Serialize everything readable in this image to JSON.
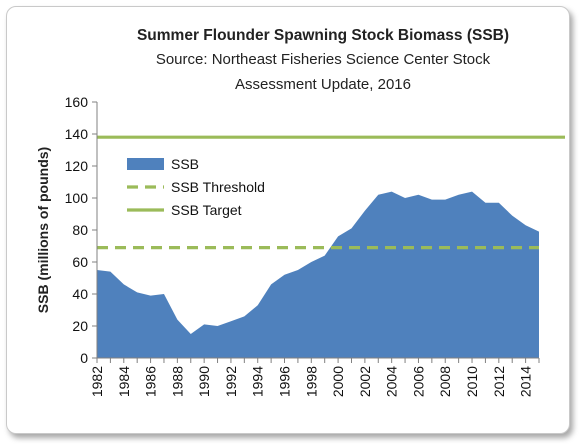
{
  "chart_data": {
    "type": "area",
    "title": "Summer Flounder Spawning Stock Biomass (SSB)",
    "subtitle_line1": "Source: Northeast Fisheries Science Center Stock",
    "subtitle_line2": "Assessment Update, 2016",
    "ylabel": "SSB (millions of pounds)",
    "xlabel": "",
    "ylim": [
      0,
      160
    ],
    "yticks": [
      0,
      20,
      40,
      60,
      80,
      100,
      120,
      140,
      160
    ],
    "xticks": [
      "1982",
      "1984",
      "1986",
      "1988",
      "1990",
      "1992",
      "1994",
      "1996",
      "1998",
      "2000",
      "2002",
      "2004",
      "2006",
      "2008",
      "2010",
      "2012",
      "2014"
    ],
    "grid": false,
    "legend_position": "upper-left",
    "x": [
      1982,
      1983,
      1984,
      1985,
      1986,
      1987,
      1988,
      1989,
      1990,
      1991,
      1992,
      1993,
      1994,
      1995,
      1996,
      1997,
      1998,
      1999,
      2000,
      2001,
      2002,
      2003,
      2004,
      2005,
      2006,
      2007,
      2008,
      2009,
      2010,
      2011,
      2012,
      2013,
      2014,
      2015
    ],
    "series": [
      {
        "name": "SSB",
        "kind": "area",
        "color": "#4f81bd",
        "values": [
          55,
          54,
          46,
          41,
          39,
          40,
          24,
          15,
          21,
          20,
          23,
          26,
          33,
          46,
          52,
          55,
          60,
          64,
          76,
          81,
          92,
          102,
          104,
          100,
          102,
          99,
          99,
          102,
          104,
          97,
          97,
          89,
          83,
          79
        ]
      },
      {
        "name": "SSB Threshold",
        "kind": "dashed-line",
        "color": "#9bbb59",
        "value": 69
      },
      {
        "name": "SSB Target",
        "kind": "line",
        "color": "#9bbb59",
        "value": 138
      }
    ]
  }
}
